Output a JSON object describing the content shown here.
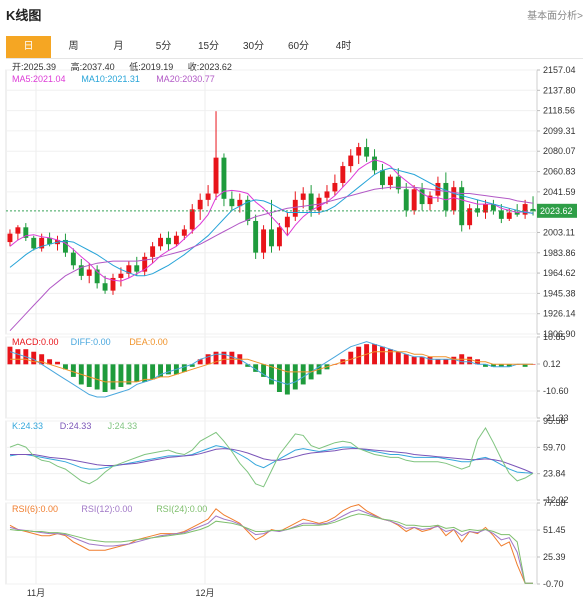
{
  "header": {
    "title": "K线图",
    "analysis_link": "基本面分析>"
  },
  "tabs": [
    {
      "label": "日"
    },
    {
      "label": "周"
    },
    {
      "label": "月"
    },
    {
      "label": "5分"
    },
    {
      "label": "15分"
    },
    {
      "label": "30分"
    },
    {
      "label": "60分"
    },
    {
      "label": "4时"
    }
  ],
  "active_tab": 0,
  "colors": {
    "up": "#e8141a",
    "down": "#1e9b3c",
    "ma5": "#dd3bd7",
    "ma10": "#27a4d8",
    "ma20": "#b259c6",
    "k": "#35a7dc",
    "d": "#7b55b8",
    "j": "#7fc47f",
    "diff": "#49a7dd",
    "dea": "#f0932b",
    "rsi6": "#f07d2d",
    "rsi12": "#a178c7",
    "rsi24": "#7fbf6d",
    "accent": "#f5a623"
  },
  "legend": {
    "ohlc": [
      {
        "label": "开:",
        "value": "2025.39"
      },
      {
        "label": "高:",
        "value": "2037.40"
      },
      {
        "label": "低:",
        "value": "2019.19"
      },
      {
        "label": "收:",
        "value": "2023.62"
      }
    ],
    "ma": [
      {
        "label": "MA5:",
        "value": "2021.04"
      },
      {
        "label": "MA10:",
        "value": "2021.31"
      },
      {
        "label": "MA20:",
        "value": "2030.77"
      }
    ],
    "macd": [
      {
        "label": "MACD:",
        "value": "0.00"
      },
      {
        "label": "DIFF:",
        "value": "0.00"
      },
      {
        "label": "DEA:",
        "value": "0.00"
      }
    ],
    "kdj": [
      {
        "label": "K:",
        "value": "24.33"
      },
      {
        "label": "D:",
        "value": "24.33"
      },
      {
        "label": "J:",
        "value": "24.33"
      }
    ],
    "rsi": [
      {
        "label": "RSI(6):",
        "value": "0.00"
      },
      {
        "label": "RSI(12):",
        "value": "0.00"
      },
      {
        "label": "RSI(24):",
        "value": "0.00"
      }
    ]
  },
  "chart_data": {
    "type": "candlestick",
    "x_labels": [
      "11月",
      "12月"
    ],
    "price_ticks": [
      "2157.04",
      "2137.80",
      "2118.56",
      "2099.31",
      "2080.07",
      "2060.83",
      "2041.59",
      "2003.11",
      "1983.86",
      "1964.62",
      "1945.38",
      "1926.14",
      "1906.90"
    ],
    "price_range": [
      1906.9,
      2157.04
    ],
    "last_price": "2023.62",
    "macd_ticks": [
      "10.85",
      "0.12",
      "-10.60",
      "-21.33"
    ],
    "macd_range": [
      -21.33,
      10.85
    ],
    "kdj_ticks": [
      "95.56",
      "59.70",
      "23.84",
      "-12.02"
    ],
    "kdj_range": [
      -12.02,
      95.56
    ],
    "rsi_ticks": [
      "77.58",
      "51.45",
      "25.39",
      "-0.70"
    ],
    "rsi_range": [
      -0.7,
      77.58
    ],
    "candles": [
      [
        1994,
        2006,
        1990,
        2002
      ],
      [
        2002,
        2010,
        1996,
        2008
      ],
      [
        2008,
        2012,
        1995,
        1998
      ],
      [
        1998,
        2000,
        1986,
        1988
      ],
      [
        1988,
        2002,
        1985,
        1998
      ],
      [
        1998,
        2003,
        1990,
        1992
      ],
      [
        1992,
        2000,
        1986,
        1996
      ],
      [
        1996,
        2002,
        1980,
        1984
      ],
      [
        1984,
        1988,
        1968,
        1972
      ],
      [
        1972,
        1978,
        1958,
        1962
      ],
      [
        1962,
        1974,
        1955,
        1968
      ],
      [
        1968,
        1972,
        1950,
        1955
      ],
      [
        1955,
        1962,
        1945,
        1948
      ],
      [
        1948,
        1964,
        1944,
        1960
      ],
      [
        1960,
        1970,
        1952,
        1964
      ],
      [
        1964,
        1976,
        1960,
        1972
      ],
      [
        1972,
        1980,
        1962,
        1966
      ],
      [
        1966,
        1984,
        1962,
        1980
      ],
      [
        1980,
        1994,
        1974,
        1990
      ],
      [
        1990,
        2002,
        1986,
        1998
      ],
      [
        1998,
        2004,
        1986,
        1992
      ],
      [
        1992,
        2004,
        1990,
        2000
      ],
      [
        2000,
        2010,
        1996,
        2006
      ],
      [
        2006,
        2030,
        2002,
        2025
      ],
      [
        2025,
        2040,
        2015,
        2034
      ],
      [
        2034,
        2048,
        2028,
        2040
      ],
      [
        2040,
        2118,
        2034,
        2074
      ],
      [
        2074,
        2078,
        2028,
        2035
      ],
      [
        2035,
        2042,
        2024,
        2028
      ],
      [
        2028,
        2040,
        2022,
        2034
      ],
      [
        2034,
        2038,
        2010,
        2014
      ],
      [
        2014,
        2020,
        1978,
        1984
      ],
      [
        1984,
        2010,
        1978,
        2006
      ],
      [
        2006,
        2034,
        1984,
        1990
      ],
      [
        1990,
        2012,
        1986,
        2008
      ],
      [
        2008,
        2022,
        2000,
        2018
      ],
      [
        2018,
        2042,
        2014,
        2034
      ],
      [
        2034,
        2046,
        2026,
        2040
      ],
      [
        2040,
        2048,
        2018,
        2024
      ],
      [
        2024,
        2040,
        2020,
        2036
      ],
      [
        2036,
        2048,
        2030,
        2042
      ],
      [
        2042,
        2058,
        2038,
        2050
      ],
      [
        2050,
        2070,
        2046,
        2066
      ],
      [
        2066,
        2082,
        2060,
        2076
      ],
      [
        2076,
        2088,
        2068,
        2084
      ],
      [
        2084,
        2092,
        2070,
        2075
      ],
      [
        2075,
        2082,
        2058,
        2062
      ],
      [
        2062,
        2068,
        2044,
        2048
      ],
      [
        2048,
        2058,
        2044,
        2056
      ],
      [
        2056,
        2064,
        2040,
        2044
      ],
      [
        2044,
        2050,
        2018,
        2024
      ],
      [
        2024,
        2048,
        2020,
        2044
      ],
      [
        2044,
        2050,
        2024,
        2030
      ],
      [
        2030,
        2042,
        2024,
        2038
      ],
      [
        2038,
        2056,
        2032,
        2050
      ],
      [
        2050,
        2060,
        2018,
        2024
      ],
      [
        2024,
        2052,
        2020,
        2046
      ],
      [
        2046,
        2052,
        2004,
        2010
      ],
      [
        2010,
        2030,
        2006,
        2026
      ],
      [
        2026,
        2034,
        2018,
        2022
      ],
      [
        2022,
        2034,
        2016,
        2030
      ],
      [
        2030,
        2034,
        2020,
        2024
      ],
      [
        2024,
        2030,
        2012,
        2016
      ],
      [
        2016,
        2026,
        2014,
        2022
      ],
      [
        2022,
        2030,
        2018,
        2020
      ],
      [
        2020,
        2034,
        2016,
        2030
      ],
      [
        2025.39,
        2037.4,
        2019.19,
        2023.62
      ]
    ],
    "ma5": [
      1990,
      1996,
      2000,
      2001,
      1999,
      1998,
      1996,
      1993,
      1987,
      1980,
      1974,
      1966,
      1960,
      1958,
      1957,
      1960,
      1964,
      1968,
      1974,
      1981,
      1986,
      1990,
      1997,
      2004,
      2011,
      2020,
      2036,
      2042,
      2043,
      2042,
      2040,
      2032,
      2026,
      2018,
      2010,
      2000,
      2010,
      2018,
      2024,
      2028,
      2032,
      2038,
      2046,
      2054,
      2063,
      2068,
      2072,
      2070,
      2066,
      2058,
      2052,
      2046,
      2040,
      2036,
      2036,
      2034,
      2036,
      2034,
      2032,
      2030,
      2030,
      2030,
      2026,
      2024,
      2022,
      2023,
      2021.04
    ],
    "ma10": [
      1970,
      1976,
      1982,
      1987,
      1990,
      1992,
      1994,
      1995,
      1994,
      1990,
      1986,
      1982,
      1977,
      1972,
      1968,
      1965,
      1962,
      1962,
      1964,
      1968,
      1972,
      1977,
      1982,
      1988,
      1994,
      2000,
      2008,
      2016,
      2024,
      2028,
      2032,
      2034,
      2033,
      2030,
      2026,
      2022,
      2022,
      2022,
      2022,
      2022,
      2024,
      2028,
      2034,
      2040,
      2046,
      2052,
      2058,
      2062,
      2064,
      2062,
      2060,
      2058,
      2054,
      2050,
      2046,
      2043,
      2040,
      2038,
      2036,
      2034,
      2032,
      2030,
      2028,
      2026,
      2024,
      2022,
      2021.31
    ],
    "ma20": [
      1910,
      1918,
      1926,
      1934,
      1942,
      1950,
      1956,
      1962,
      1966,
      1970,
      1972,
      1974,
      1975,
      1976,
      1976,
      1976,
      1976,
      1977,
      1978,
      1980,
      1982,
      1984,
      1986,
      1989,
      1992,
      1996,
      2000,
      2004,
      2008,
      2012,
      2015,
      2018,
      2020,
      2022,
      2024,
      2026,
      2027,
      2028,
      2029,
      2030,
      2032,
      2034,
      2036,
      2038,
      2040,
      2042,
      2044,
      2045,
      2046,
      2046,
      2046,
      2046,
      2045,
      2044,
      2043,
      2042,
      2041,
      2040,
      2040,
      2039,
      2038,
      2037,
      2036,
      2035,
      2033,
      2032,
      2030.77
    ],
    "macd_bars": [
      7,
      6,
      6,
      5,
      4,
      2,
      1,
      -2,
      -5,
      -8,
      -9,
      -10,
      -11,
      -10,
      -9,
      -8,
      -7,
      -7,
      -6,
      -5,
      -4,
      -4,
      -3,
      -1,
      2,
      4,
      5,
      5,
      5,
      4,
      -1,
      -3,
      -5,
      -8,
      -11,
      -12,
      -10,
      -8,
      -6,
      -4,
      -2,
      0,
      2,
      5,
      7,
      8,
      8,
      7,
      6,
      5,
      4,
      3,
      3,
      3,
      2,
      2,
      3,
      4,
      3,
      2,
      -1,
      -1,
      -1,
      -1,
      0,
      -1,
      0
    ],
    "macd_diff": [
      5,
      4,
      3,
      2,
      0,
      -2,
      -4,
      -6,
      -8,
      -10,
      -12,
      -13,
      -13,
      -12,
      -11,
      -10,
      -8,
      -7,
      -6,
      -4,
      -3,
      -2,
      -1,
      0,
      2,
      3,
      4,
      4,
      3,
      2,
      0,
      -2,
      -4,
      -6,
      -7,
      -8,
      -7,
      -5,
      -3,
      -1,
      1,
      3,
      5,
      7,
      8,
      9,
      8,
      7,
      6,
      5,
      4,
      3,
      3,
      2,
      2,
      2,
      2,
      1,
      1,
      0,
      0,
      -1,
      -1,
      -1,
      0,
      0,
      0
    ],
    "macd_dea": [
      2,
      2,
      2,
      1,
      1,
      0,
      -1,
      -2,
      -3,
      -4,
      -5,
      -6,
      -7,
      -7,
      -7,
      -7,
      -7,
      -6,
      -6,
      -5,
      -5,
      -4,
      -3,
      -2,
      -1,
      0,
      1,
      2,
      2,
      2,
      2,
      1,
      0,
      -1,
      -2,
      -3,
      -3,
      -3,
      -3,
      -2,
      -1,
      0,
      1,
      2,
      3,
      4,
      5,
      5,
      5,
      5,
      5,
      4,
      4,
      3,
      3,
      3,
      2,
      2,
      2,
      1,
      1,
      0,
      0,
      0,
      0,
      0,
      0
    ],
    "kdj_k": [
      48,
      50,
      50,
      48,
      46,
      44,
      42,
      40,
      36,
      32,
      30,
      30,
      32,
      34,
      36,
      38,
      40,
      42,
      44,
      46,
      48,
      48,
      48,
      50,
      54,
      58,
      62,
      60,
      56,
      50,
      44,
      36,
      32,
      38,
      44,
      50,
      56,
      58,
      56,
      54,
      56,
      58,
      60,
      60,
      58,
      56,
      54,
      52,
      50,
      50,
      48,
      46,
      46,
      46,
      46,
      44,
      42,
      40,
      40,
      44,
      46,
      42,
      36,
      30,
      26,
      25,
      24.33
    ],
    "kdj_d": [
      50,
      50,
      50,
      50,
      48,
      46,
      45,
      44,
      42,
      40,
      38,
      36,
      35,
      35,
      36,
      37,
      38,
      40,
      42,
      44,
      46,
      47,
      48,
      49,
      51,
      54,
      57,
      58,
      57,
      55,
      52,
      48,
      44,
      42,
      42,
      44,
      47,
      50,
      52,
      53,
      54,
      55,
      57,
      58,
      58,
      57,
      56,
      55,
      54,
      53,
      52,
      50,
      49,
      48,
      47,
      46,
      45,
      44,
      43,
      43,
      44,
      43,
      41,
      37,
      33,
      29,
      24.33
    ],
    "kdj_j": [
      60,
      64,
      60,
      48,
      42,
      40,
      34,
      30,
      22,
      14,
      10,
      16,
      26,
      34,
      38,
      42,
      46,
      50,
      52,
      54,
      56,
      52,
      50,
      56,
      68,
      74,
      80,
      68,
      54,
      38,
      26,
      10,
      6,
      28,
      50,
      64,
      78,
      76,
      62,
      58,
      62,
      66,
      68,
      66,
      58,
      54,
      50,
      48,
      46,
      46,
      42,
      40,
      40,
      40,
      40,
      38,
      34,
      30,
      34,
      70,
      86,
      66,
      44,
      24,
      14,
      18,
      24.33
    ],
    "rsi6": [
      56,
      52,
      50,
      48,
      46,
      46,
      48,
      46,
      40,
      36,
      32,
      32,
      32,
      34,
      36,
      38,
      42,
      44,
      46,
      48,
      48,
      48,
      50,
      54,
      58,
      62,
      72,
      66,
      62,
      58,
      50,
      42,
      46,
      52,
      50,
      54,
      58,
      62,
      60,
      58,
      60,
      64,
      70,
      74,
      76,
      70,
      66,
      62,
      60,
      56,
      50,
      54,
      50,
      52,
      56,
      46,
      52,
      40,
      50,
      48,
      54,
      46,
      36,
      40,
      18,
      0,
      0
    ],
    "rsi12": [
      54,
      52,
      51,
      50,
      49,
      48,
      48,
      47,
      44,
      41,
      38,
      37,
      36,
      36,
      37,
      38,
      40,
      42,
      44,
      46,
      47,
      48,
      49,
      52,
      55,
      58,
      65,
      62,
      60,
      57,
      52,
      47,
      48,
      51,
      50,
      52,
      55,
      58,
      58,
      57,
      58,
      61,
      65,
      69,
      71,
      68,
      65,
      62,
      60,
      57,
      53,
      54,
      52,
      53,
      55,
      50,
      52,
      46,
      50,
      49,
      52,
      48,
      42,
      44,
      30,
      0,
      0
    ],
    "rsi24": [
      52,
      51,
      51,
      50,
      50,
      49,
      49,
      48,
      46,
      44,
      42,
      41,
      40,
      40,
      40,
      41,
      42,
      43,
      44,
      45,
      46,
      47,
      48,
      50,
      52,
      55,
      60,
      59,
      58,
      56,
      53,
      50,
      50,
      51,
      51,
      52,
      54,
      56,
      56,
      56,
      57,
      59,
      62,
      65,
      67,
      66,
      64,
      62,
      61,
      59,
      56,
      56,
      55,
      55,
      56,
      53,
      54,
      50,
      52,
      51,
      52,
      50,
      47,
      47,
      40,
      0,
      0
    ]
  }
}
